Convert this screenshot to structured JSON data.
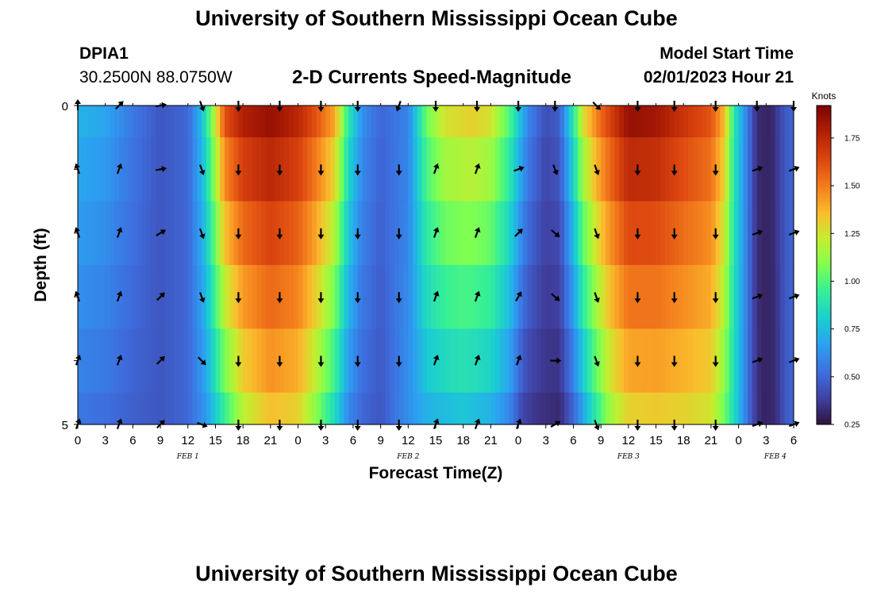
{
  "header": {
    "title": "University of Southern Mississippi Ocean Cube",
    "station_id": "DPIA1",
    "coordinates": "30.2500N  88.0750W",
    "subtitle": "2-D Currents Speed-Magnitude",
    "start_label": "Model Start Time",
    "start_value": "02/01/2023 Hour 21"
  },
  "footer": {
    "title": "University of Southern Mississippi Ocean Cube"
  },
  "chart_data": {
    "type": "heatmap",
    "title": "2-D Currents Speed-Magnitude",
    "xlabel": "Forecast Time(Z)",
    "ylabel": "Depth (ft)",
    "colorbar_label": "Knots",
    "x_tick_labels": [
      "0",
      "3",
      "6",
      "9",
      "12",
      "15",
      "18",
      "21",
      "0",
      "3",
      "6",
      "9",
      "12",
      "15",
      "18",
      "21",
      "0",
      "3",
      "6",
      "9",
      "12",
      "15",
      "18",
      "21",
      "0",
      "3",
      "6"
    ],
    "x_range_hours": [
      0,
      78
    ],
    "date_labels": [
      {
        "label": "FEB 1",
        "hour": 12
      },
      {
        "label": "FEB 2",
        "hour": 36
      },
      {
        "label": "FEB 3",
        "hour": 60
      },
      {
        "label": "FEB 4",
        "hour": 76
      }
    ],
    "y_tick_labels": [
      "0",
      "5"
    ],
    "y_range_ft": [
      0,
      5
    ],
    "depth_levels_ft": [
      0,
      1,
      2,
      3,
      4,
      5
    ],
    "colorbar_ticks": [
      "1.75",
      "1.50",
      "1.25",
      "1.00",
      "0.75",
      "0.50",
      "0.25"
    ],
    "colorbar_range": [
      0.25,
      1.92
    ],
    "speed_profile_surface": [
      [
        0,
        0.72
      ],
      [
        3,
        0.68
      ],
      [
        6,
        0.55
      ],
      [
        9,
        0.45
      ],
      [
        12,
        0.5
      ],
      [
        13.5,
        0.75
      ],
      [
        14.5,
        1.05
      ],
      [
        16,
        1.6
      ],
      [
        18,
        1.78
      ],
      [
        21,
        1.85
      ],
      [
        24,
        1.75
      ],
      [
        26,
        1.6
      ],
      [
        28,
        1.4
      ],
      [
        29.5,
        0.9
      ],
      [
        31,
        0.62
      ],
      [
        33,
        0.5
      ],
      [
        36,
        0.58
      ],
      [
        38,
        1.05
      ],
      [
        40,
        1.25
      ],
      [
        43,
        1.3
      ],
      [
        45,
        1.25
      ],
      [
        47,
        1.0
      ],
      [
        49,
        0.6
      ],
      [
        51,
        0.42
      ],
      [
        52.5,
        0.48
      ],
      [
        54,
        0.9
      ],
      [
        55,
        1.25
      ],
      [
        57,
        1.55
      ],
      [
        60,
        1.85
      ],
      [
        63,
        1.82
      ],
      [
        66,
        1.7
      ],
      [
        69,
        1.6
      ],
      [
        70.5,
        1.35
      ],
      [
        71.5,
        0.9
      ],
      [
        73,
        0.55
      ],
      [
        74,
        0.32
      ],
      [
        75.5,
        0.3
      ],
      [
        77,
        0.45
      ],
      [
        78,
        0.5
      ]
    ],
    "speed_profile_bottom": [
      [
        0,
        0.55
      ],
      [
        3,
        0.52
      ],
      [
        6,
        0.48
      ],
      [
        9,
        0.45
      ],
      [
        12,
        0.5
      ],
      [
        14,
        0.65
      ],
      [
        16,
        0.95
      ],
      [
        18,
        1.2
      ],
      [
        21,
        1.35
      ],
      [
        24,
        1.3
      ],
      [
        26,
        1.1
      ],
      [
        28,
        0.85
      ],
      [
        29.5,
        0.6
      ],
      [
        31,
        0.5
      ],
      [
        33,
        0.45
      ],
      [
        36,
        0.62
      ],
      [
        38,
        0.72
      ],
      [
        42,
        0.78
      ],
      [
        45,
        0.72
      ],
      [
        47,
        0.6
      ],
      [
        48.5,
        0.4
      ],
      [
        50,
        0.35
      ],
      [
        52.5,
        0.32
      ],
      [
        54,
        0.5
      ],
      [
        56,
        0.85
      ],
      [
        58,
        1.15
      ],
      [
        60,
        1.3
      ],
      [
        63,
        1.32
      ],
      [
        66,
        1.3
      ],
      [
        69,
        1.25
      ],
      [
        70.5,
        1.05
      ],
      [
        72,
        0.75
      ],
      [
        73.5,
        0.42
      ],
      [
        74.5,
        0.3
      ],
      [
        76,
        0.32
      ],
      [
        77,
        0.45
      ],
      [
        78,
        0.5
      ]
    ],
    "arrow_hours": [
      0,
      4.5,
      9,
      13.5,
      17.5,
      22,
      26.5,
      30.5,
      35,
      39,
      43.5,
      48,
      52,
      56.5,
      61,
      65,
      69.5,
      74,
      78
    ],
    "arrow_directions_deg": [
      [
        0,
        45,
        80,
        160,
        180,
        180,
        180,
        180,
        200,
        180,
        180,
        180,
        180,
        135,
        180,
        180,
        180,
        180,
        180
      ],
      [
        340,
        20,
        80,
        160,
        180,
        180,
        180,
        180,
        180,
        20,
        20,
        70,
        160,
        160,
        180,
        180,
        180,
        70,
        70
      ],
      [
        340,
        20,
        60,
        160,
        180,
        180,
        180,
        180,
        180,
        20,
        20,
        45,
        130,
        160,
        180,
        180,
        180,
        70,
        70
      ],
      [
        340,
        20,
        45,
        160,
        180,
        180,
        180,
        180,
        180,
        20,
        20,
        30,
        130,
        160,
        180,
        180,
        180,
        70,
        70
      ],
      [
        20,
        20,
        45,
        135,
        180,
        180,
        180,
        180,
        180,
        20,
        20,
        20,
        90,
        160,
        180,
        180,
        180,
        70,
        70
      ],
      [
        20,
        20,
        45,
        110,
        180,
        180,
        180,
        180,
        180,
        20,
        20,
        20,
        60,
        160,
        180,
        180,
        180,
        70,
        70
      ]
    ]
  }
}
